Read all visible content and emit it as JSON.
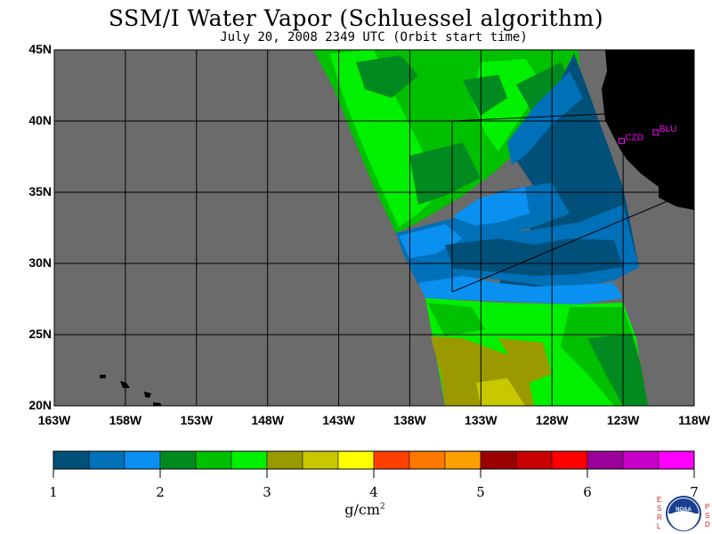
{
  "title": "SSM/I Water Vapor (Schluessel algorithm)",
  "subtitle": "July 20, 2008  2349 UTC  (Orbit start time)",
  "map": {
    "lat_labels": [
      "45N",
      "40N",
      "35N",
      "30N",
      "25N",
      "20N"
    ],
    "lon_labels": [
      "163W",
      "158W",
      "153W",
      "148W",
      "143W",
      "138W",
      "133W",
      "128W",
      "123W",
      "118W"
    ],
    "stations": [
      {
        "code": "CZD",
        "lon": -123.1,
        "lat": 38.6
      },
      {
        "code": "BLU",
        "lon": -120.7,
        "lat": 39.2
      }
    ],
    "colors": {
      "no_data": "#6b6b6b",
      "land": "#000000",
      "station": "#ff00ff"
    }
  },
  "colorbar": {
    "unit_main": "g/cm",
    "unit_sup": "2",
    "tick_labels": [
      "1",
      "2",
      "3",
      "4",
      "5",
      "6",
      "7"
    ],
    "colors": [
      "#00507a",
      "#0070b8",
      "#0a90f0",
      "#008a20",
      "#00c000",
      "#00f000",
      "#9a9a00",
      "#c8c800",
      "#ffff00",
      "#ff4000",
      "#ff7800",
      "#ffa000",
      "#9a0000",
      "#c80000",
      "#ff0000",
      "#9a009a",
      "#c800c8",
      "#ff00ff"
    ]
  },
  "logo": {
    "left_letters": "ESRL",
    "right_letters": "PSD",
    "center_text": "NOAA"
  }
}
